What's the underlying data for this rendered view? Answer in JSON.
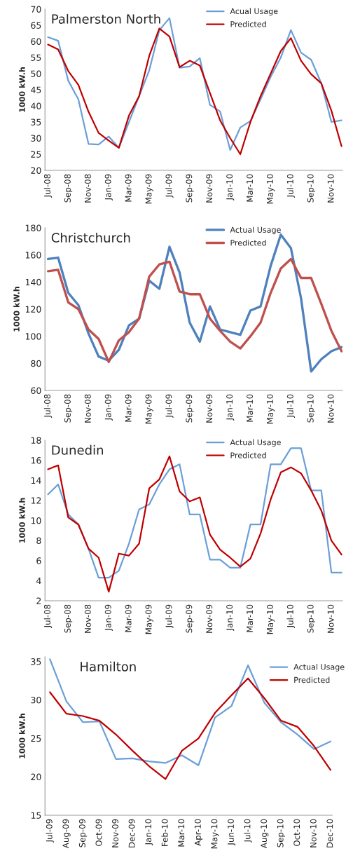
{
  "chart_data": [
    {
      "type": "line",
      "title": "Palmerston North",
      "ylabel": "1000 kW.h",
      "categories": [
        "Jul-08",
        null,
        "Sep-08",
        null,
        "Nov-08",
        null,
        "Jan-09",
        null,
        "Mar-09",
        null,
        "May-09",
        null,
        "Jul-09",
        null,
        "Sep-09",
        null,
        "Nov-09",
        null,
        "Jan-10",
        null,
        "Mar-10",
        null,
        "May-10",
        null,
        "Jul-10",
        null,
        "Sep-10",
        null,
        "Nov-10",
        null
      ],
      "series": [
        {
          "name": "Acual Usage",
          "color": "#6a9fd8",
          "values": [
            61.3,
            60.2,
            47.8,
            42,
            28.2,
            28,
            30.5,
            27,
            35,
            43,
            51,
            63.5,
            67.2,
            51.8,
            52.2,
            54.8,
            40.3,
            38.3,
            26.3,
            33.3,
            35.3,
            42,
            49,
            55,
            63.5,
            56.5,
            54.3,
            47,
            35,
            35.5
          ]
        },
        {
          "name": "Predicted",
          "color": "#c00000",
          "values": [
            59,
            57.5,
            50.8,
            46.5,
            38.2,
            31.6,
            29.2,
            27,
            37,
            43,
            55.5,
            64,
            61.5,
            52,
            54,
            52.5,
            44,
            35.5,
            30,
            25,
            35,
            43,
            50,
            57,
            61,
            54,
            49.8,
            47,
            38.5,
            27.5
          ]
        }
      ],
      "ylim": [
        20,
        70
      ],
      "yticks": [
        20,
        25,
        30,
        35,
        40,
        45,
        50,
        55,
        60,
        65,
        70
      ],
      "legend": "top right",
      "grid": false
    },
    {
      "type": "line",
      "title": "Christchurch",
      "ylabel": "1000 kW.h",
      "categories": [
        "Jul-08",
        null,
        "Sep-08",
        null,
        "Nov-08",
        null,
        "Jan-09",
        null,
        "Mar-09",
        null,
        "May-09",
        null,
        "Jul-09",
        null,
        "Sep-09",
        null,
        "Nov-09",
        null,
        "Jan-10",
        null,
        "Mar-10",
        null,
        "May-10",
        null,
        "Jul-10",
        null,
        "Sep-10",
        null,
        "Nov-10",
        null
      ],
      "series": [
        {
          "name": "Actual Usage",
          "color": "#4f81bd",
          "values": [
            157,
            158,
            132,
            123,
            102,
            85,
            82,
            90,
            108,
            113,
            141,
            135,
            166,
            147,
            110,
            96,
            122,
            105,
            103,
            101,
            119,
            122,
            152,
            175,
            165,
            128,
            74,
            83,
            89,
            92
          ]
        },
        {
          "name": "Predicted",
          "color": "#c0504d",
          "values": [
            148,
            149,
            125,
            120,
            105,
            98,
            81,
            97,
            103,
            113,
            144,
            153,
            155,
            133,
            131,
            131,
            113,
            104,
            96,
            91,
            100,
            110,
            132,
            150,
            157,
            143,
            143,
            124,
            104,
            89
          ]
        }
      ],
      "ylim": [
        60,
        180
      ],
      "yticks": [
        60,
        80,
        100,
        120,
        140,
        160,
        180
      ],
      "legend": "top right",
      "grid": false
    },
    {
      "type": "line",
      "title": "Dunedin",
      "ylabel": "1000 kW.h",
      "categories": [
        "Jul-08",
        null,
        "Sep-08",
        null,
        "Nov-08",
        null,
        "Jan-09",
        null,
        "Mar-09",
        null,
        "May-09",
        null,
        "Jul-09",
        null,
        "Sep-09",
        null,
        "Nov-09",
        null,
        "Jan-10",
        null,
        "Mar-10",
        null,
        "May-10",
        null,
        "Jul-10",
        null,
        "Sep-10",
        null,
        "Nov-10",
        null
      ],
      "series": [
        {
          "name": "Actual Usage",
          "color": "#6a9fd8",
          "values": [
            12.6,
            13.6,
            10.6,
            9.6,
            7.2,
            4.3,
            4.3,
            5,
            7.7,
            11.1,
            11.6,
            13.6,
            15.1,
            15.6,
            10.6,
            10.6,
            6.1,
            6.1,
            5.3,
            5.3,
            9.6,
            9.6,
            15.6,
            15.6,
            17.2,
            17.2,
            13,
            13,
            4.8,
            4.8
          ]
        },
        {
          "name": "Predicted",
          "color": "#c00000",
          "values": [
            15.1,
            15.5,
            10.3,
            9.6,
            7.2,
            6.3,
            2.9,
            6.7,
            6.5,
            7.7,
            13.2,
            14.1,
            16.4,
            12.9,
            11.9,
            12.3,
            8.6,
            7.1,
            6.3,
            5.4,
            6.2,
            8.7,
            12.1,
            14.8,
            15.3,
            14.7,
            13,
            11,
            8,
            6.6
          ]
        }
      ],
      "ylim": [
        2,
        18
      ],
      "yticks": [
        2,
        4,
        6,
        8,
        10,
        12,
        14,
        16,
        18
      ],
      "legend": "top right",
      "grid": false
    },
    {
      "type": "line",
      "title": "Hamilton",
      "ylabel": "1000 kW.h",
      "categories": [
        "Jul-09",
        "Aug-09",
        "Sep-09",
        "Oct-09",
        "Nov-09",
        "Dec-09",
        "Jan-10",
        "Feb-10",
        "Mar-10",
        "Apr-10",
        "May-10",
        "Jun-10",
        "Jul-10",
        "Aug-10",
        "Sep-10",
        "Oct-10",
        "Nov-10",
        "Dec-10"
      ],
      "series": [
        {
          "name": "Actual Usage",
          "color": "#6a9fd8",
          "values": [
            35.3,
            29.8,
            27.1,
            27.2,
            22.3,
            22.4,
            22,
            21.8,
            22.8,
            21.5,
            27.7,
            29.2,
            34.5,
            29.6,
            27.1,
            25.5,
            23.6,
            24.6
          ]
        },
        {
          "name": "Predicted",
          "color": "#c00000",
          "values": [
            31,
            28.2,
            27.9,
            27.3,
            25.5,
            23.4,
            21.4,
            19.7,
            23.4,
            25,
            28.3,
            30.6,
            32.8,
            30.2,
            27.3,
            26.5,
            24,
            20.9
          ]
        }
      ],
      "ylim": [
        15,
        35.6
      ],
      "yticks": [
        15,
        20,
        25,
        30,
        35
      ],
      "legend": "top right",
      "grid": false
    }
  ]
}
